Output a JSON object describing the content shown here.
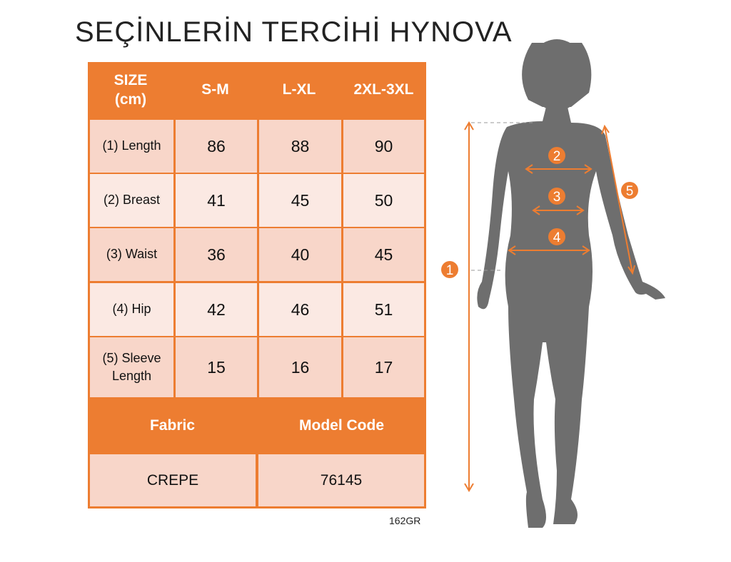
{
  "table": {
    "headers": [
      "SIZE\n(cm)",
      "S-M",
      "L-XL",
      "2XL-3XL"
    ],
    "header_size_line1": "SIZE",
    "header_size_line2": "(cm)",
    "rows": [
      {
        "label": "(1) Length",
        "values": [
          "86",
          "88",
          "90"
        ]
      },
      {
        "label": "(2) Breast",
        "values": [
          "41",
          "45",
          "50"
        ]
      },
      {
        "label": "(3) Waist",
        "values": [
          "36",
          "40",
          "45"
        ]
      },
      {
        "label": "(4) Hip",
        "values": [
          "42",
          "46",
          "51"
        ]
      },
      {
        "label_line1": "(5) Sleeve",
        "label_line2": "Length",
        "values": [
          "15",
          "16",
          "17"
        ]
      }
    ],
    "fabric_header": "Fabric",
    "model_code_header": "Model Code",
    "fabric_value": "CREPE",
    "model_code_value": "76145"
  },
  "product_code": "162GR",
  "watermark": "SEÇİNLERİN TERCİHİ HYNOVA",
  "figure": {
    "markers": [
      "1",
      "2",
      "3",
      "4",
      "5"
    ]
  },
  "colors": {
    "accent": "#ed7d31",
    "row_dark": "#f8d6c9",
    "row_light": "#fbe9e3",
    "silhouette": "#6e6e6e"
  }
}
